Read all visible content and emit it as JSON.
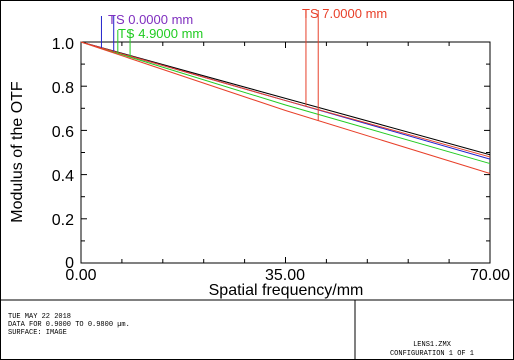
{
  "chart_data": {
    "type": "line",
    "xlabel": "Spatial frequency/mm",
    "ylabel": "Modulus of the OTF",
    "xlim": [
      0,
      70
    ],
    "ylim": [
      0,
      1.0
    ],
    "x_tick_labels": [
      "0.00",
      "35.00",
      "70.00"
    ],
    "y_tick_labels": [
      "0",
      "0.2",
      "0.4",
      "0.6",
      "0.8",
      "1.0"
    ],
    "grid": false,
    "field_labels": [
      {
        "text": "TS 0.0000 mm",
        "color": "#7f2fbf"
      },
      {
        "text": "TS 4.9000 mm",
        "color": "#22cc22"
      },
      {
        "text": "TS 7.0000 mm",
        "color": "#e8402a"
      }
    ],
    "series": [
      {
        "color": "#000000",
        "x": [
          0,
          35,
          70
        ],
        "y": [
          1.0,
          0.745,
          0.49
        ]
      },
      {
        "color": "#2222cc",
        "x": [
          0,
          35,
          70
        ],
        "y": [
          1.0,
          0.735,
          0.47
        ]
      },
      {
        "color": "#22cc22",
        "x": [
          0,
          35,
          70
        ],
        "y": [
          1.0,
          0.715,
          0.45
        ]
      },
      {
        "color": "#e8402a",
        "x": [
          0,
          35,
          70
        ],
        "y": [
          1.0,
          0.69,
          0.405
        ]
      },
      {
        "color": "#e8402a",
        "x": [
          0,
          35,
          70
        ],
        "y": [
          1.0,
          0.735,
          0.48
        ]
      }
    ],
    "field_markers": [
      {
        "color": "#2222cc",
        "x": [
          3.5,
          5.6
        ]
      },
      {
        "color": "#22cc22",
        "x": [
          6.3,
          8.4
        ]
      },
      {
        "color": "#e8402a",
        "x": [
          38.5,
          40.6
        ]
      }
    ]
  },
  "info": {
    "line1": "TUE MAY 22 2018",
    "line2": "DATA FOR 0.9000 TO 0.9800 µm.",
    "line3": "SURFACE: IMAGE",
    "file": "LENS1.ZMX",
    "config": "CONFIGURATION 1 OF 1"
  }
}
